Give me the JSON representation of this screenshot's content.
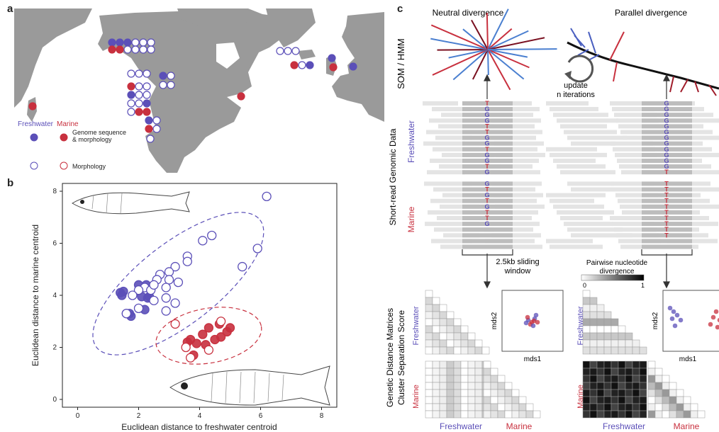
{
  "panels": {
    "a": "a",
    "b": "b",
    "c": "c"
  },
  "map": {
    "legend": {
      "freshwater": "Freshwater",
      "marine": "Marine",
      "genome": "Genome sequence\n& morphology",
      "genome_line1": "Genome sequence",
      "genome_line2": "& morphology",
      "morphology": "Morphology"
    },
    "colors": {
      "freshwater": "#5b4fb8",
      "marine": "#c8303e",
      "land": "#9a9a9a",
      "ocean": "#ffffff"
    }
  },
  "scatter": {
    "chart_data": {
      "type": "scatter",
      "xlabel": "Euclidean distance to freshwater centroid",
      "ylabel": "Euclidean distance to marine centroid",
      "xlim": [
        -0.5,
        8.5
      ],
      "ylim": [
        -0.3,
        8.3
      ],
      "xticks": [
        0,
        2,
        4,
        6,
        8
      ],
      "yticks": [
        0,
        2,
        4,
        6,
        8
      ],
      "series": [
        {
          "name": "Freshwater",
          "color": "#5b4fb8",
          "filled": true,
          "x": [
            1.4,
            1.5,
            1.45,
            2.0,
            2.25,
            1.7,
            1.6,
            2.35,
            2.1,
            2.3,
            1.75,
            2.2
          ],
          "y": [
            4.1,
            4.15,
            4.0,
            4.4,
            4.4,
            3.3,
            3.3,
            3.95,
            3.95,
            3.9,
            3.2,
            3.45
          ]
        },
        {
          "name": "Freshwater",
          "color": "#5b4fb8",
          "filled": false,
          "x": [
            6.2,
            4.4,
            4.1,
            5.9,
            3.6,
            3.6,
            3.2,
            3.0,
            3.0,
            3.3,
            2.2,
            2.4,
            2.7,
            2.6,
            2.5,
            2.9,
            2.0,
            1.8,
            2.9,
            3.2,
            5.4,
            2.5,
            2.0,
            2.9,
            1.6
          ],
          "y": [
            7.8,
            6.3,
            6.1,
            5.8,
            5.5,
            5.3,
            5.1,
            4.9,
            4.6,
            4.5,
            4.3,
            4.2,
            4.8,
            4.6,
            4.4,
            4.3,
            4.2,
            4.0,
            3.9,
            3.7,
            5.1,
            3.8,
            3.5,
            3.4,
            3.3
          ]
        },
        {
          "name": "Marine",
          "color": "#c8303e",
          "filled": true,
          "x": [
            4.3,
            4.65,
            5.0,
            4.9,
            4.1,
            4.5,
            3.7,
            3.9,
            4.2,
            3.6,
            4.7,
            3.8
          ],
          "y": [
            2.75,
            2.9,
            2.75,
            2.6,
            2.5,
            2.3,
            2.3,
            2.15,
            2.1,
            2.2,
            2.4,
            1.7
          ]
        },
        {
          "name": "Marine",
          "color": "#c8303e",
          "filled": false,
          "x": [
            4.7,
            3.2,
            3.55,
            4.3,
            3.7
          ],
          "y": [
            3.0,
            2.9,
            2.0,
            1.9,
            1.6
          ]
        }
      ],
      "ellipses": [
        {
          "color": "#5b4fb8",
          "cx": 3.3,
          "cy": 4.45,
          "rx": 3.4,
          "ry": 1.55,
          "angle_deg": 38
        },
        {
          "color": "#c8303e",
          "cx": 4.3,
          "cy": 2.45,
          "rx": 1.75,
          "ry": 1.05,
          "angle_deg": 10
        }
      ]
    }
  },
  "schema": {
    "neutral_title": "Neutral divergence",
    "parallel_title": "Parallel divergence",
    "som_label": "SOM / HMM",
    "update_line1": "update",
    "update_line2": "n iterations",
    "genomic_label": "Short-read Genomic Data",
    "freshwater": "Freshwater",
    "marine": "Marine",
    "window_line1": "2.5kb sliding",
    "window_line2": "window",
    "colorbar_title_line1": "Pairwise nucleotide",
    "colorbar_title_line2": "divergence",
    "colorbar_min": "0",
    "colorbar_max": "1",
    "matrices_label_line1": "Genetic Distance Matrices",
    "matrices_label_line2": "Cluster Separation Score",
    "mds1": "mds1",
    "mds2": "mds2",
    "neutral_alleles": [
      "T",
      "G",
      "G",
      "G",
      "T",
      "T",
      "G",
      "G",
      "T",
      "G",
      "G",
      "T",
      "G",
      "G",
      "T",
      "G",
      "T",
      "G",
      "T",
      "T",
      "G"
    ],
    "parallel_alleles": [
      "G",
      "G",
      "G",
      "G",
      "G",
      "G",
      "G",
      "G",
      "G",
      "G",
      "G",
      "G",
      "T",
      "T",
      "T",
      "T",
      "T",
      "T",
      "T",
      "T",
      "T",
      "T",
      "T"
    ]
  }
}
